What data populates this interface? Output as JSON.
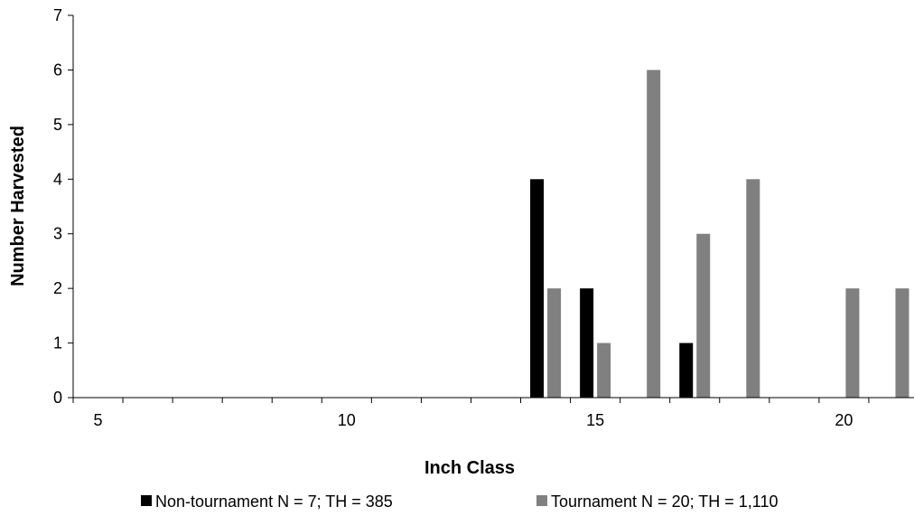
{
  "chart_data": {
    "type": "bar",
    "title": "",
    "xlabel": "Inch Class",
    "ylabel": "Number Harvested",
    "xlim": [
      5,
      21
    ],
    "ylim": [
      0,
      7
    ],
    "x_ticks": [
      "5",
      "10",
      "15",
      "20"
    ],
    "y_ticks": [
      "0",
      "1",
      "2",
      "3",
      "4",
      "5",
      "6",
      "7"
    ],
    "grid": false,
    "legend_position": "bottom",
    "categories": [
      5,
      6,
      7,
      8,
      9,
      10,
      11,
      12,
      13,
      14,
      15,
      16,
      17,
      18,
      19,
      20,
      21
    ],
    "series": [
      {
        "name": "Non-tournament N = 7; TH = 385",
        "color": "#000000",
        "values": [
          0,
          0,
          0,
          0,
          0,
          0,
          0,
          0,
          0,
          4,
          2,
          0,
          1,
          0,
          0,
          0,
          0
        ]
      },
      {
        "name": "Tournament N = 20; TH = 1,110",
        "color": "#808080",
        "values": [
          0,
          0,
          0,
          0,
          0,
          0,
          0,
          0,
          0,
          2,
          1,
          6,
          3,
          4,
          0,
          2,
          2
        ]
      }
    ]
  }
}
